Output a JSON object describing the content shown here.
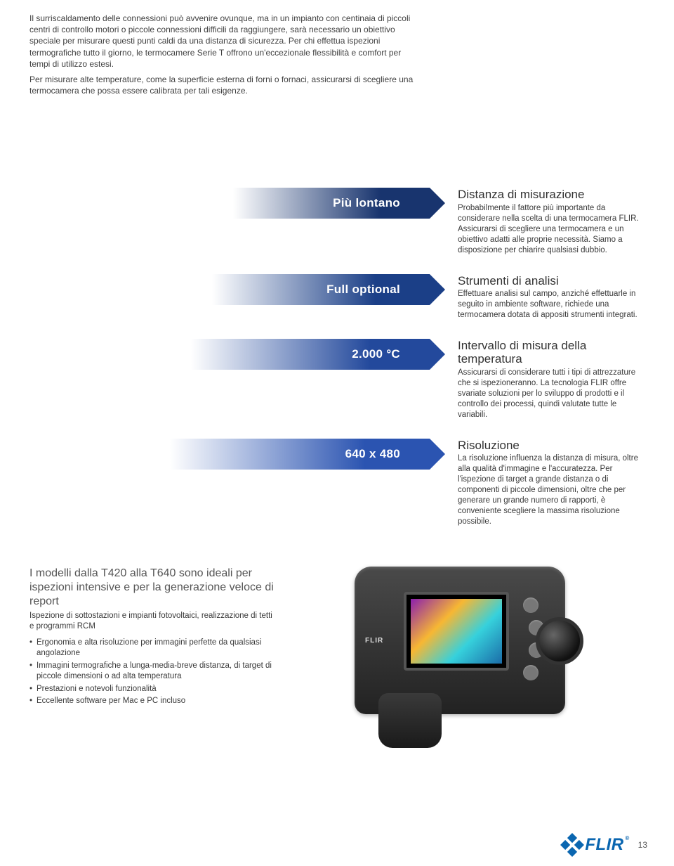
{
  "colors": {
    "text": "#333333",
    "muted_text": "#555555",
    "flir_blue": "#0a66b0",
    "arrow_gradients": [
      {
        "from": "#ffffff",
        "to": "#18346e",
        "tip": "#18346e"
      },
      {
        "from": "#ffffff",
        "to": "#1b3f87",
        "tip": "#1b3f87"
      },
      {
        "from": "#ffffff",
        "to": "#23499c",
        "tip": "#23499c"
      },
      {
        "from": "#ffffff",
        "to": "#2b54b1",
        "tip": "#2b54b1"
      }
    ]
  },
  "intro": {
    "p1": "Il surriscaldamento delle connessioni può avvenire ovunque, ma in un impianto con centinaia di piccoli centri di controllo motori o piccole connessioni difficili da raggiungere, sarà necessario un obiettivo speciale per misurare questi punti caldi da una distanza di sicurezza. Per chi effettua ispezioni termografiche tutto il giorno, le termocamere Serie T offrono un'eccezionale flessibilità e comfort per tempi di utilizzo estesi.",
    "p2": "Per misurare alte temperature, come la superficie esterna di forni o fornaci, assicurarsi di scegliere una termocamera che possa essere calibrata per tali esigenze."
  },
  "features": [
    {
      "arrow_label": "Più lontano",
      "title": "Distanza di misurazione",
      "body": "Probabilmente il fattore più importante da considerare nella scelta di una termocamera FLIR. Assicurarsi di scegliere una termocamera e un obiettivo adatti alle proprie necessità. Siamo a disposizione per chiarire qualsiasi dubbio."
    },
    {
      "arrow_label": "Full optional",
      "title": "Strumenti di analisi",
      "body": "Effettuare analisi sul campo, anziché effettuarle in seguito in ambiente software, richiede una termocamera dotata di appositi strumenti integrati."
    },
    {
      "arrow_label": "2.000 °C",
      "title": "Intervallo di misura della temperatura",
      "body": "Assicurarsi di considerare tutti i tipi di attrezzature che si ispezioneranno. La tecnologia FLIR offre svariate soluzioni per lo sviluppo di prodotti e il controllo dei processi, quindi valutate tutte le variabili."
    },
    {
      "arrow_label": "640 x 480",
      "title": "Risoluzione",
      "body": "La risoluzione influenza la distanza di misura, oltre alla qualità d'immagine e l'accuratezza. Per l'ispezione di target a grande distanza o di componenti di piccole dimensioni, oltre che per generare un grande numero di rapporti, è conveniente scegliere la massima risoluzione possibile."
    }
  ],
  "bottom": {
    "heading": "I modelli dalla T420 alla T640 sono ideali per ispezioni intensive e per la generazione veloce di report",
    "sub": "Ispezione di sottostazioni e impianti fotovoltaici, realizzazione di tetti e programmi RCM",
    "bullets": [
      "Ergonomia e alta risoluzione per immagini perfette da qualsiasi angolazione",
      "Immagini termografiche a lunga-media-breve distanza, di target di piccole dimensioni o ad alta temperatura",
      "Prestazioni e notevoli funzionalità",
      "Eccellente software per Mac e PC incluso"
    ],
    "camera_brand": "FLIR"
  },
  "footer": {
    "brand": "FLIR",
    "page": "13"
  }
}
